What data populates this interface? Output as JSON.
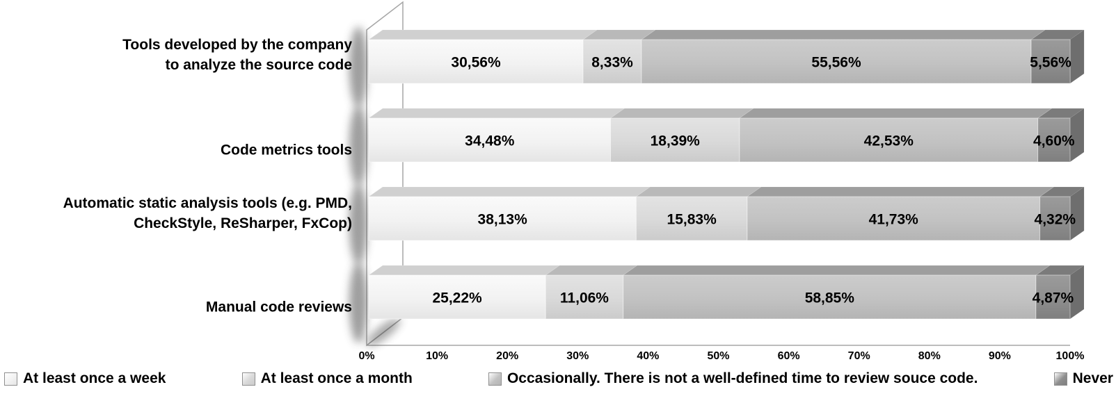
{
  "chart_data": {
    "type": "bar",
    "orientation": "horizontal",
    "stacked": true,
    "style": "3d",
    "title": "",
    "xlabel": "",
    "ylabel": "",
    "xlim": [
      0,
      100
    ],
    "x_ticks": [
      "0%",
      "10%",
      "20%",
      "30%",
      "40%",
      "50%",
      "60%",
      "70%",
      "80%",
      "90%",
      "100%"
    ],
    "grid": false,
    "legend_position": "bottom",
    "categories": [
      "Tools developed by the company\nto analyze the source code",
      "Code metrics tools",
      "Automatic static analysis tools (e.g. PMD,\nCheckStyle, ReSharper, FxCop)",
      "Manual code reviews"
    ],
    "series": [
      {
        "name": "At least once a week",
        "color": "#f2f2f2",
        "top_color": "#d0d0d0",
        "front_gradient": [
          "#fafafa",
          "#f2f2f2",
          "#e5e5e5"
        ],
        "values": [
          30.56,
          34.48,
          38.13,
          25.22
        ],
        "labels": [
          "30,56%",
          "34,48%",
          "38,13%",
          "25,22%"
        ]
      },
      {
        "name": "At least once a month",
        "color": "#d9d9d9",
        "top_color": "#b9b9b9",
        "front_gradient": [
          "#e3e3e3",
          "#d9d9d9",
          "#cbcbcb"
        ],
        "values": [
          8.33,
          18.39,
          15.83,
          11.06
        ],
        "labels": [
          "8,33%",
          "18,39%",
          "15,83%",
          "11,06%"
        ]
      },
      {
        "name": "Occasionally. There is not a well-defined time to review souce code.",
        "color": "#c2c2c2",
        "top_color": "#9e9e9e",
        "front_gradient": [
          "#cccccc",
          "#c2c2c2",
          "#b4b4b4"
        ],
        "values": [
          55.56,
          42.53,
          41.73,
          58.85
        ],
        "labels": [
          "55,56%",
          "42,53%",
          "41,73%",
          "58,85%"
        ]
      },
      {
        "name": "Never",
        "color": "#8e8e8e",
        "top_color": "#7b7b7b",
        "side_color": "#6e6e6e",
        "front_gradient": [
          "#9b9b9b",
          "#8e8e8e",
          "#7f7f7f"
        ],
        "values": [
          5.56,
          4.6,
          4.32,
          4.87
        ],
        "labels": [
          "5,56%",
          "4,60%",
          "4,32%",
          "4,87%"
        ]
      }
    ]
  }
}
